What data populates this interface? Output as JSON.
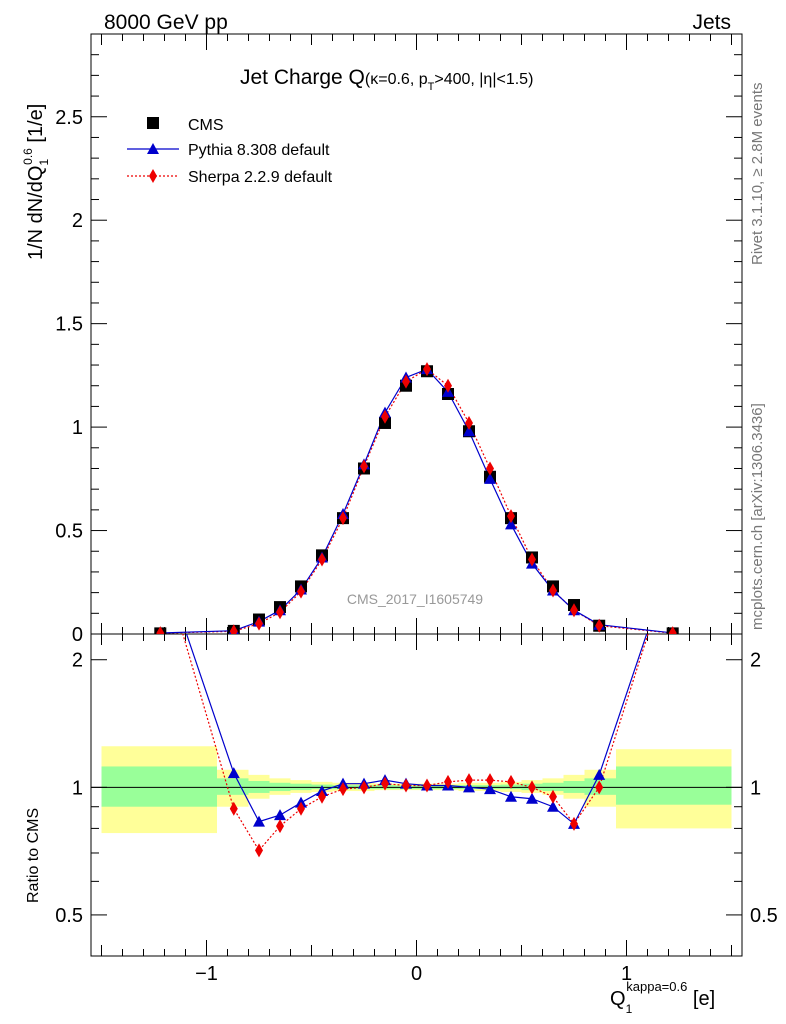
{
  "header": {
    "energy": "8000 GeV pp",
    "topic": "Jets"
  },
  "title": {
    "main": "Jet Charge Q",
    "kappa": "(κ=0.6, p",
    "sub_t": "T",
    "rest": ">400, |η|<1.5)"
  },
  "watermark": "CMS_2017_I1605749",
  "side_labels": {
    "rivet": "Rivet 3.1.10, ≥ 2.8M events",
    "mcplots": "mcplots.cern.ch [arXiv:1306.3436]"
  },
  "axes": {
    "ylabel_main": {
      "prefix": "1/N dN/dQ",
      "sub": "1",
      "sup": "0.6",
      "suffix": " [1/e]"
    },
    "ylabel_ratio": "Ratio to CMS",
    "xlabel": {
      "base": "Q",
      "sub": "1",
      "sup": "kappa=0.6",
      "suffix": " [e]"
    },
    "main_yticks": [
      "0",
      "0.5",
      "1",
      "1.5",
      "2",
      "2.5"
    ],
    "ratio_yticks": [
      "0.5",
      "1",
      "2"
    ],
    "xticks": [
      "−1",
      "0",
      "1"
    ]
  },
  "legend": {
    "cms": "CMS",
    "pythia": "Pythia 8.308 default",
    "sherpa": "Sherpa 2.2.9 default"
  },
  "colors": {
    "cms": "#000000",
    "pythia": "#0000cc",
    "sherpa": "#ee0000",
    "band_inner": "#99ff99",
    "band_outer": "#ffff99"
  },
  "chart_data": {
    "type": "scatter",
    "main_panel": {
      "xlim": [
        -1.55,
        1.55
      ],
      "ylim": [
        0,
        2.9
      ],
      "series": [
        {
          "name": "CMS",
          "x": [
            -1.22,
            -0.87,
            -0.75,
            -0.65,
            -0.55,
            -0.45,
            -0.35,
            -0.25,
            -0.15,
            -0.05,
            0.05,
            0.15,
            0.25,
            0.35,
            0.45,
            0.55,
            0.65,
            0.75,
            0.87,
            1.22
          ],
          "y": [
            0.003,
            0.015,
            0.07,
            0.13,
            0.23,
            0.38,
            0.56,
            0.8,
            1.02,
            1.2,
            1.27,
            1.16,
            0.98,
            0.76,
            0.56,
            0.37,
            0.23,
            0.14,
            0.04,
            0.003
          ]
        },
        {
          "name": "Pythia 8.308 default",
          "x": [
            -1.22,
            -0.87,
            -0.75,
            -0.65,
            -0.55,
            -0.45,
            -0.35,
            -0.25,
            -0.15,
            -0.05,
            0.05,
            0.15,
            0.25,
            0.35,
            0.45,
            0.55,
            0.65,
            0.75,
            0.87,
            1.22
          ],
          "y": [
            0.005,
            0.016,
            0.06,
            0.115,
            0.215,
            0.37,
            0.58,
            0.82,
            1.07,
            1.24,
            1.28,
            1.17,
            0.98,
            0.75,
            0.53,
            0.34,
            0.21,
            0.115,
            0.045,
            0.005
          ]
        },
        {
          "name": "Sherpa 2.2.9 default",
          "x": [
            -1.22,
            -0.87,
            -0.75,
            -0.65,
            -0.55,
            -0.45,
            -0.35,
            -0.25,
            -0.15,
            -0.05,
            0.05,
            0.15,
            0.25,
            0.35,
            0.45,
            0.55,
            0.65,
            0.75,
            0.87,
            1.22
          ],
          "y": [
            0.004,
            0.013,
            0.05,
            0.105,
            0.205,
            0.36,
            0.56,
            0.81,
            1.05,
            1.22,
            1.28,
            1.2,
            1.02,
            0.8,
            0.57,
            0.36,
            0.21,
            0.115,
            0.04,
            0.004
          ]
        }
      ]
    },
    "ratio_panel": {
      "ylim": [
        0.4,
        2.3
      ],
      "scale": "log",
      "band_bins": [
        -1.5,
        -0.95,
        -0.8,
        -0.7,
        -0.6,
        -0.5,
        -0.4,
        -0.3,
        -0.2,
        -0.1,
        0,
        0.1,
        0.2,
        0.3,
        0.4,
        0.5,
        0.6,
        0.7,
        0.8,
        0.95,
        1.5
      ],
      "band_inner": [
        [
          0.9,
          1.12
        ],
        [
          0.96,
          1.05
        ],
        [
          0.97,
          1.035
        ],
        [
          0.98,
          1.025
        ],
        [
          0.985,
          1.02
        ],
        [
          0.99,
          1.015
        ],
        [
          0.99,
          1.012
        ],
        [
          0.99,
          1.012
        ],
        [
          0.99,
          1.012
        ],
        [
          0.99,
          1.01
        ],
        [
          0.99,
          1.01
        ],
        [
          0.99,
          1.012
        ],
        [
          0.99,
          1.012
        ],
        [
          0.99,
          1.012
        ],
        [
          0.99,
          1.015
        ],
        [
          0.985,
          1.02
        ],
        [
          0.98,
          1.025
        ],
        [
          0.97,
          1.035
        ],
        [
          0.96,
          1.05
        ],
        [
          0.91,
          1.12
        ]
      ],
      "band_outer": [
        [
          0.78,
          1.25
        ],
        [
          0.9,
          1.1
        ],
        [
          0.94,
          1.07
        ],
        [
          0.96,
          1.05
        ],
        [
          0.97,
          1.04
        ],
        [
          0.975,
          1.03
        ],
        [
          0.98,
          1.025
        ],
        [
          0.98,
          1.025
        ],
        [
          0.985,
          1.02
        ],
        [
          0.985,
          1.02
        ],
        [
          0.985,
          1.02
        ],
        [
          0.985,
          1.02
        ],
        [
          0.98,
          1.025
        ],
        [
          0.98,
          1.025
        ],
        [
          0.975,
          1.03
        ],
        [
          0.97,
          1.04
        ],
        [
          0.96,
          1.05
        ],
        [
          0.94,
          1.07
        ],
        [
          0.9,
          1.1
        ],
        [
          0.8,
          1.23
        ]
      ],
      "series": [
        {
          "name": "Pythia 8.308 default",
          "x": [
            -1.22,
            -0.87,
            -0.75,
            -0.65,
            -0.55,
            -0.45,
            -0.35,
            -0.25,
            -0.15,
            -0.05,
            0.05,
            0.15,
            0.25,
            0.35,
            0.45,
            0.55,
            0.65,
            0.75,
            0.87,
            1.22
          ],
          "y": [
            3.5,
            1.08,
            0.83,
            0.86,
            0.92,
            0.98,
            1.02,
            1.02,
            1.04,
            1.02,
            1.01,
            1.01,
            1.0,
            0.99,
            0.95,
            0.94,
            0.9,
            0.82,
            1.07,
            3.5
          ]
        },
        {
          "name": "Sherpa 2.2.9 default",
          "x": [
            -1.22,
            -0.87,
            -0.75,
            -0.65,
            -0.55,
            -0.45,
            -0.35,
            -0.25,
            -0.15,
            -0.05,
            0.05,
            0.15,
            0.25,
            0.35,
            0.45,
            0.55,
            0.65,
            0.75,
            0.87,
            1.22
          ],
          "y": [
            3.5,
            0.89,
            0.71,
            0.81,
            0.89,
            0.95,
            0.99,
            1.0,
            1.02,
            1.01,
            1.01,
            1.03,
            1.04,
            1.04,
            1.03,
            1.0,
            0.95,
            0.82,
            1.0,
            3.5
          ]
        }
      ]
    }
  }
}
